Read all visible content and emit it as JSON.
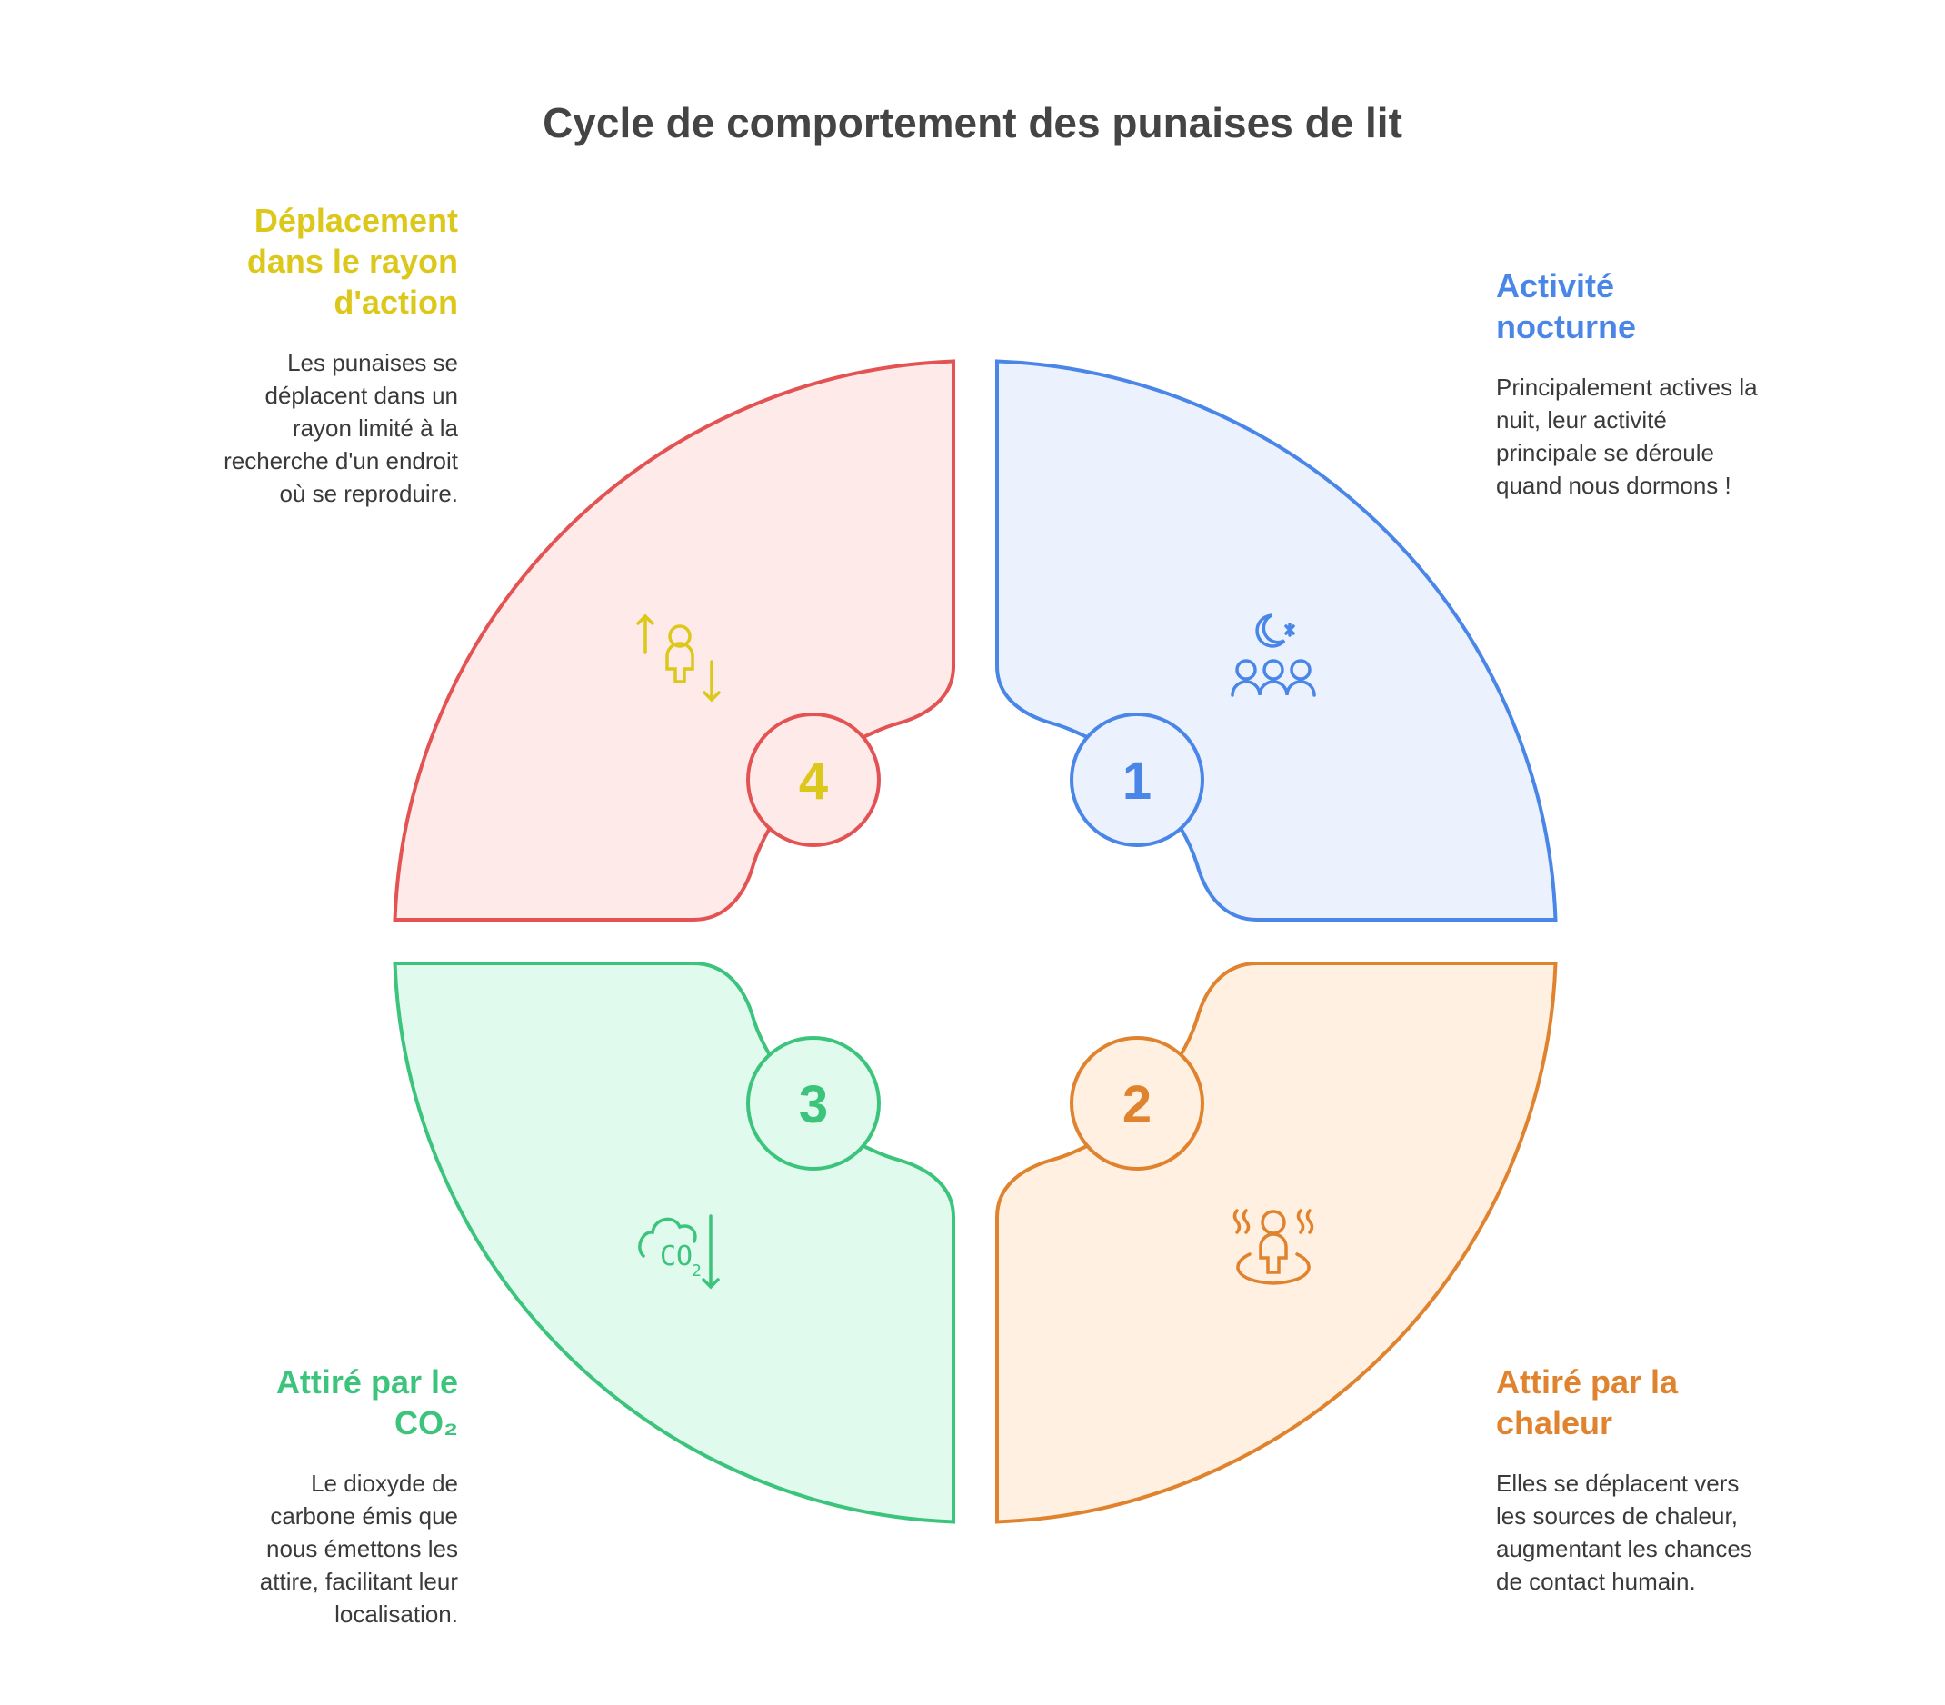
{
  "title": "Cycle de comportement des punaises de lit",
  "colors": {
    "blue": "#4a86e8",
    "orange": "#e0832e",
    "green": "#3cc47c",
    "red": "#e35353",
    "yellow": "#dcc81a"
  },
  "steps": [
    {
      "number": "1",
      "heading": "Activité nocturne",
      "text": "Principalement actives la nuit, leur activité principale se déroule quand nous dormons !",
      "icon": "moon-people-icon"
    },
    {
      "number": "2",
      "heading": "Attiré par la chaleur",
      "text": "Elles se déplacent vers les sources de chaleur, augmentant les chances de contact humain.",
      "icon": "person-heat-icon"
    },
    {
      "number": "3",
      "heading": "Attiré par le CO₂",
      "text": "Le dioxyde de carbone émis que nous émettons les attire, facilitant leur localisation.",
      "icon": "co2-cloud-down-icon"
    },
    {
      "number": "4",
      "heading": "Déplacement dans le rayon d'action",
      "text": "Les punaises se déplacent dans un rayon limité à la recherche d'un endroit où se reproduire.",
      "icon": "person-up-down-arrows-icon"
    }
  ]
}
